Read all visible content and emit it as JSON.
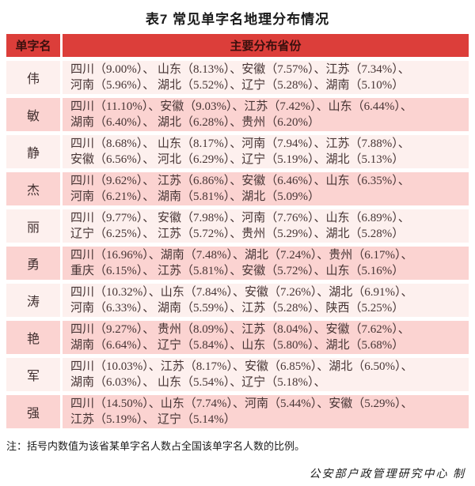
{
  "title": "表7  常见单字名地理分布情况",
  "colors": {
    "header_bg": "#dc3e3a",
    "header_text": "#3a100e",
    "row_light": "#fdf0ee",
    "row_dark": "#fbd3d1",
    "body_text": "#463434"
  },
  "table": {
    "headers": {
      "name": "单字名",
      "provinces": "主要分布省份"
    },
    "rows": [
      {
        "name": "伟",
        "line1": "四川（9.00%）、 山东（8.13%）、安徽（7.57%）、江苏（7.34%）、",
        "line2": "河南（5.96%）、 湖北（5.52%）、辽宁（5.28%）、湖南（5.10%）"
      },
      {
        "name": "敏",
        "line1": "四川（11.10%）、安徽（9.03%）、江苏（7.42%）、山东（6.44%）、",
        "line2": "湖南（6.40%）、 湖北（6.28%）、贵州（6.20%）"
      },
      {
        "name": "静",
        "line1": "四川（8.68%）、 山东（8.17%）、河南（7.94%）、江苏（7.88%）、",
        "line2": "安徽（6.56%）、 河北（6.29%）、辽宁（5.19%）、湖北（5.13%）"
      },
      {
        "name": "杰",
        "line1": "四川（9.62%）、 江苏（6.86%）、安徽（6.46%）、山东（6.35%）、",
        "line2": "河南（6.21%）、 湖南（5.81%）、湖北（5.09%）"
      },
      {
        "name": "丽",
        "line1": "四川（9.77%）、 安徽（7.98%）、河南（7.76%）、山东（6.89%）、",
        "line2": "辽宁（6.25%）、 江苏（5.72%）、贵州（5.29%）、湖北（5.28%）"
      },
      {
        "name": "勇",
        "line1": "四川（16.96%）、湖南（7.48%）、湖北（7.24%）、贵州（6.17%）、",
        "line2": "重庆（6.15%）、 江苏（5.81%）、安徽（5.72%）、山东（5.16%）"
      },
      {
        "name": "涛",
        "line1": "四川（10.32%）、山东（7.84%）、安徽（7.26%）、湖北（6.91%）、",
        "line2": "河南（6.33%）、 湖南（5.59%）、江苏（5.28%）、陕西（5.25%）"
      },
      {
        "name": "艳",
        "line1": "四川（9.27%）、 贵州（8.09%）、江苏（8.04%）、安徽（7.62%）、",
        "line2": "湖南（6.64%）、 辽宁（5.84%）、山东（5.80%）、湖北（5.68%）"
      },
      {
        "name": "军",
        "line1": "四川（10.03%）、江苏（8.17%）、安徽（6.85%）、湖北（6.50%）、",
        "line2": "湖南（6.03%）、 山东（5.54%）、辽宁（5.18%）、"
      },
      {
        "name": "强",
        "line1": "四川（14.50%）、山东（7.74%）、河南（5.44%）、安徽（5.29%）、",
        "line2": "江苏（5.19%）、 辽宁（5.14%）"
      }
    ]
  },
  "note": "注：括号内数值为该省某单字名人数占全国该单字名人数的比例。",
  "credit": "公安部户政管理研究中心 制"
}
